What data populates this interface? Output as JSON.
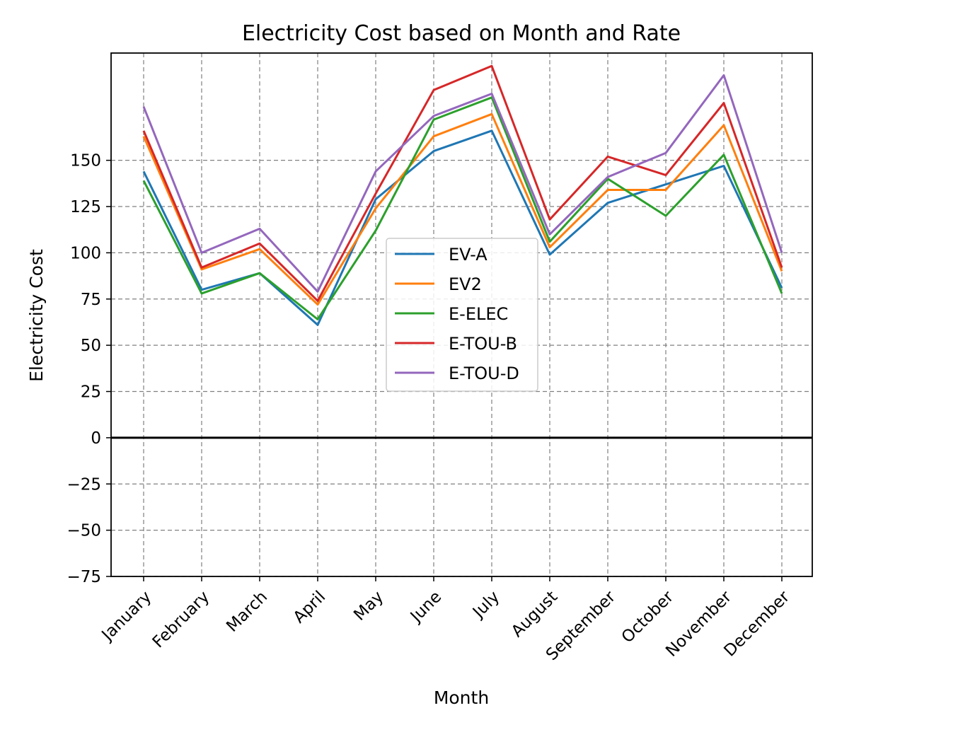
{
  "chart_data": {
    "type": "line",
    "title": "Electricity Cost based on Month and Rate",
    "xlabel": "Month",
    "ylabel": "Electricity Cost",
    "categories": [
      "January",
      "February",
      "March",
      "April",
      "May",
      "June",
      "July",
      "August",
      "September",
      "October",
      "November",
      "December"
    ],
    "ylim": [
      -75,
      208
    ],
    "yticks": [
      -75,
      -50,
      -25,
      0,
      25,
      50,
      75,
      100,
      125,
      150
    ],
    "grid": true,
    "grid_style": "dashed",
    "zero_line": true,
    "legend_position": "center",
    "series": [
      {
        "name": "EV-A",
        "color": "#1f77b4",
        "values": [
          144,
          80,
          89,
          61,
          129,
          155,
          166,
          99,
          127,
          137,
          147,
          81
        ]
      },
      {
        "name": "EV2",
        "color": "#ff7f0e",
        "values": [
          163,
          91,
          102,
          72,
          124,
          163,
          175,
          103,
          134,
          134,
          169,
          90
        ]
      },
      {
        "name": "E-ELEC",
        "color": "#2ca02c",
        "values": [
          139,
          78,
          89,
          64,
          112,
          172,
          184,
          106,
          140,
          120,
          153,
          78
        ]
      },
      {
        "name": "E-TOU-B",
        "color": "#d62728",
        "values": [
          166,
          92,
          105,
          74,
          132,
          188,
          201,
          118,
          152,
          142,
          181,
          92
        ]
      },
      {
        "name": "E-TOU-D",
        "color": "#9467bd",
        "values": [
          179,
          100,
          113,
          79,
          144,
          174,
          186,
          110,
          141,
          154,
          196,
          100
        ]
      }
    ]
  }
}
